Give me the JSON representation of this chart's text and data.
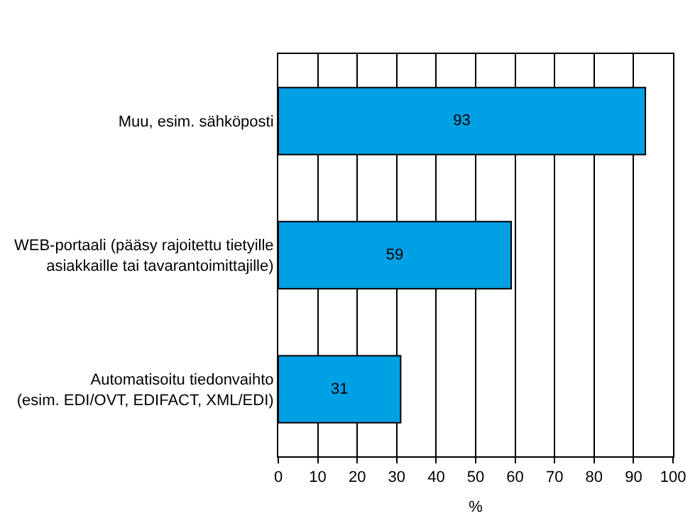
{
  "chart_data": {
    "type": "bar",
    "orientation": "horizontal",
    "categories": [
      "Muu, esim. sähköposti",
      "WEB-portaali (pääsy rajoitettu tietyille\nasiakkaille tai tavarantoimittajille)",
      "Automatisoitu tiedonvaihto\n(esim. EDI/OVT, EDIFACT, XML/EDI)"
    ],
    "values": [
      93,
      59,
      31
    ],
    "color": "#00a0e4",
    "xlim": [
      0,
      100
    ],
    "xticks": [
      0,
      10,
      20,
      30,
      40,
      50,
      60,
      70,
      80,
      90,
      100
    ],
    "xlabel": "%",
    "grid": "x",
    "data_labels": true
  }
}
